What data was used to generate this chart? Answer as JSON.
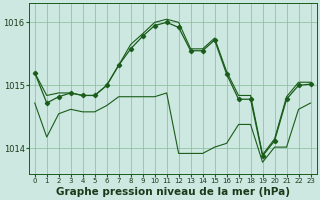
{
  "title": "Graphe pression niveau de la mer (hPa)",
  "hours": [
    0,
    1,
    2,
    3,
    4,
    5,
    6,
    7,
    8,
    9,
    10,
    11,
    12,
    13,
    14,
    15,
    16,
    17,
    18,
    19,
    20,
    21,
    22,
    23
  ],
  "line_main": [
    1015.2,
    1014.72,
    1014.82,
    1014.88,
    1014.84,
    1014.84,
    1015.0,
    1015.32,
    1015.58,
    1015.78,
    1015.95,
    1016.0,
    1015.92,
    1015.55,
    1015.55,
    1015.72,
    1015.18,
    1014.78,
    1014.78,
    1013.88,
    1014.12,
    1014.78,
    1015.0,
    1015.02
  ],
  "line_upper": [
    1015.2,
    1014.84,
    1014.88,
    1014.88,
    1014.84,
    1014.84,
    1015.0,
    1015.32,
    1015.65,
    1015.82,
    1016.0,
    1016.05,
    1016.0,
    1015.58,
    1015.58,
    1015.75,
    1015.22,
    1014.84,
    1014.84,
    1013.9,
    1014.15,
    1014.82,
    1015.05,
    1015.05
  ],
  "line_lower": [
    1014.72,
    1014.18,
    1014.55,
    1014.62,
    1014.58,
    1014.58,
    1014.68,
    1014.82,
    1014.82,
    1014.82,
    1014.82,
    1014.88,
    1013.92,
    1013.92,
    1013.92,
    1014.02,
    1014.08,
    1014.38,
    1014.38,
    1013.78,
    1014.02,
    1014.02,
    1014.62,
    1014.72
  ],
  "bg_color": "#cce8e0",
  "line_color": "#1a5c1a",
  "grid_color": "#88bb99",
  "ylim_min": 1013.6,
  "ylim_max": 1016.3,
  "yticks": [
    1014,
    1015,
    1016
  ],
  "ylabel_fontsize": 6,
  "xlabel_fontsize": 5,
  "title_fontsize": 7.5
}
